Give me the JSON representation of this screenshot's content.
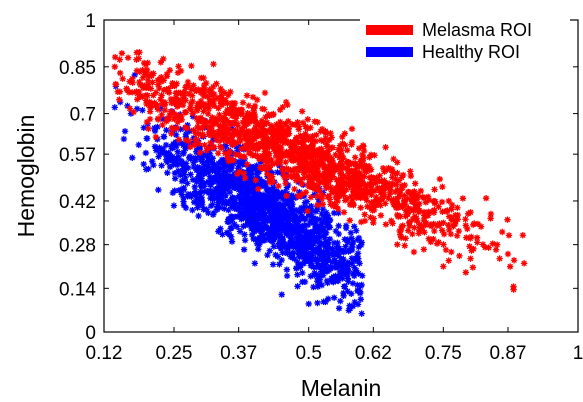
{
  "chart_data": {
    "type": "scatter",
    "xlabel": "Melanin",
    "ylabel": "Hemoglobin",
    "xlim": [
      0.12,
      1
    ],
    "ylim": [
      0,
      1
    ],
    "x_ticks": [
      "0.12",
      "0.25",
      "0.37",
      "0.5",
      "0.62",
      "0.75",
      "0.87",
      "1"
    ],
    "y_ticks": [
      "0",
      "0.14",
      "0.28",
      "0.42",
      "0.57",
      "0.7",
      "0.85",
      "1"
    ],
    "marker": "star",
    "legend_position": "top-right",
    "series": [
      {
        "name": "Melasma ROI",
        "color": "#ff0000",
        "approx_points": 1400,
        "band": {
          "x_range": [
            0.14,
            0.91
          ],
          "ridge_start": [
            0.22,
            0.77
          ],
          "ridge_end": [
            0.85,
            0.28
          ],
          "spread_y": 0.06,
          "peak_density_x": 0.48
        },
        "sample_points": [
          [
            0.14,
            0.85
          ],
          [
            0.15,
            0.83
          ],
          [
            0.2,
            0.84
          ],
          [
            0.21,
            0.8
          ],
          [
            0.24,
            0.78
          ],
          [
            0.27,
            0.77
          ],
          [
            0.3,
            0.74
          ],
          [
            0.33,
            0.75
          ],
          [
            0.36,
            0.72
          ],
          [
            0.4,
            0.68
          ],
          [
            0.43,
            0.64
          ],
          [
            0.47,
            0.6
          ],
          [
            0.5,
            0.56
          ],
          [
            0.55,
            0.52
          ],
          [
            0.6,
            0.48
          ],
          [
            0.65,
            0.44
          ],
          [
            0.7,
            0.4
          ],
          [
            0.75,
            0.35
          ],
          [
            0.8,
            0.3
          ],
          [
            0.85,
            0.28
          ],
          [
            0.87,
            0.25
          ],
          [
            0.9,
            0.22
          ],
          [
            0.75,
            0.21
          ],
          [
            0.62,
            0.35
          ],
          [
            0.68,
            0.3
          ]
        ]
      },
      {
        "name": "Healthy ROI",
        "color": "#0000ff",
        "approx_points": 1400,
        "band": {
          "x_range": [
            0.14,
            0.6
          ],
          "ridge_start": [
            0.22,
            0.6
          ],
          "ridge_end": [
            0.55,
            0.25
          ],
          "spread_y": 0.07,
          "peak_density_x": 0.43
        },
        "sample_points": [
          [
            0.14,
            0.72
          ],
          [
            0.17,
            0.7
          ],
          [
            0.2,
            0.62
          ],
          [
            0.24,
            0.56
          ],
          [
            0.27,
            0.52
          ],
          [
            0.3,
            0.47
          ],
          [
            0.33,
            0.45
          ],
          [
            0.36,
            0.4
          ],
          [
            0.39,
            0.37
          ],
          [
            0.42,
            0.34
          ],
          [
            0.45,
            0.3
          ],
          [
            0.48,
            0.28
          ],
          [
            0.5,
            0.25
          ],
          [
            0.53,
            0.23
          ],
          [
            0.56,
            0.22
          ],
          [
            0.45,
            0.12
          ],
          [
            0.5,
            0.09
          ],
          [
            0.58,
            0.3
          ],
          [
            0.52,
            0.46
          ],
          [
            0.4,
            0.22
          ],
          [
            0.46,
            0.18
          ],
          [
            0.55,
            0.18
          ]
        ]
      }
    ]
  }
}
